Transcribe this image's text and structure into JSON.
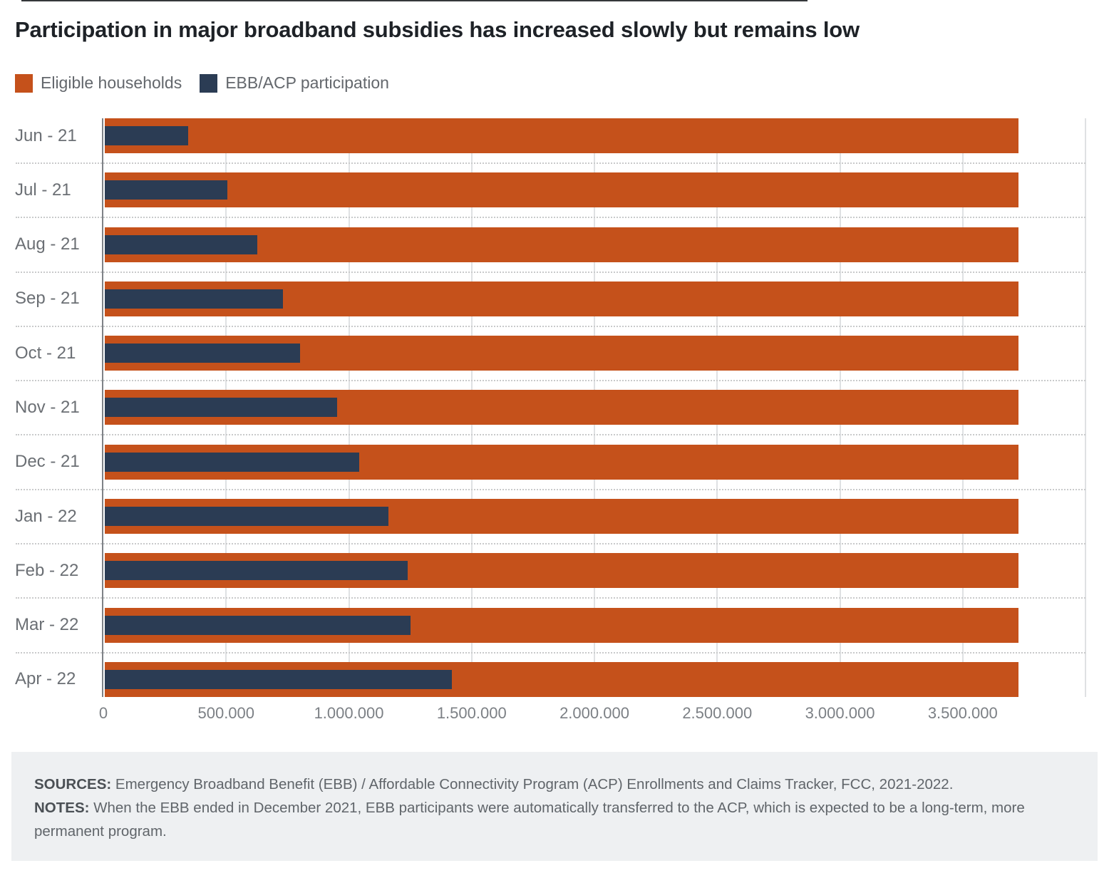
{
  "title": "Participation in major broadband subsidies has increased slowly but remains low",
  "legend": [
    {
      "label": "Eligible households",
      "color": "#c5511b"
    },
    {
      "label": "EBB/ACP participation",
      "color": "#2b3c54"
    }
  ],
  "chart_data": {
    "type": "bar",
    "orientation": "horizontal",
    "title": "Participation in major broadband subsidies has increased slowly but remains low",
    "categories": [
      "Jun - 21",
      "Jul - 21",
      "Aug - 21",
      "Sep - 21",
      "Oct - 21",
      "Nov - 21",
      "Dec - 21",
      "Jan - 22",
      "Feb - 22",
      "Mar - 22",
      "Apr - 22"
    ],
    "series": [
      {
        "name": "Eligible households",
        "color": "#c5511b",
        "values": [
          3720000,
          3720000,
          3720000,
          3720000,
          3720000,
          3720000,
          3720000,
          3720000,
          3720000,
          3720000,
          3720000
        ]
      },
      {
        "name": "EBB/ACP participation",
        "color": "#2b3c54",
        "values": [
          340000,
          500000,
          620000,
          725000,
          795000,
          945000,
          1035000,
          1155000,
          1235000,
          1245000,
          1415000
        ]
      }
    ],
    "xlim": [
      0,
      4000000
    ],
    "x_grid_values": [
      500000,
      1000000,
      1500000,
      2000000,
      2500000,
      3000000,
      3500000,
      4000000
    ],
    "x_ticks": [
      {
        "value": 0,
        "label": "0"
      },
      {
        "value": 500000,
        "label": "500.000"
      },
      {
        "value": 1000000,
        "label": "1.000.000"
      },
      {
        "value": 1500000,
        "label": "1.500.000"
      },
      {
        "value": 2000000,
        "label": "2.000.000"
      },
      {
        "value": 2500000,
        "label": "2.500.000"
      },
      {
        "value": 3000000,
        "label": "3.000.000"
      },
      {
        "value": 3500000,
        "label": "3.500.000"
      }
    ],
    "grid": "vertical dashed row separators, light vertical gridlines every 500000",
    "legend_position": "top-left"
  },
  "footer": {
    "sources_label": "SOURCES:",
    "sources_text": " Emergency Broadband Benefit (EBB) / Affordable Connectivity Program (ACP) Enrollments and Claims Tracker, FCC, 2021-2022.",
    "notes_label": "NOTES:",
    "notes_text": " When the EBB ended in December 2021, EBB participants were automatically transferred to the ACP, which is expected to be a long-term, more permanent program."
  }
}
